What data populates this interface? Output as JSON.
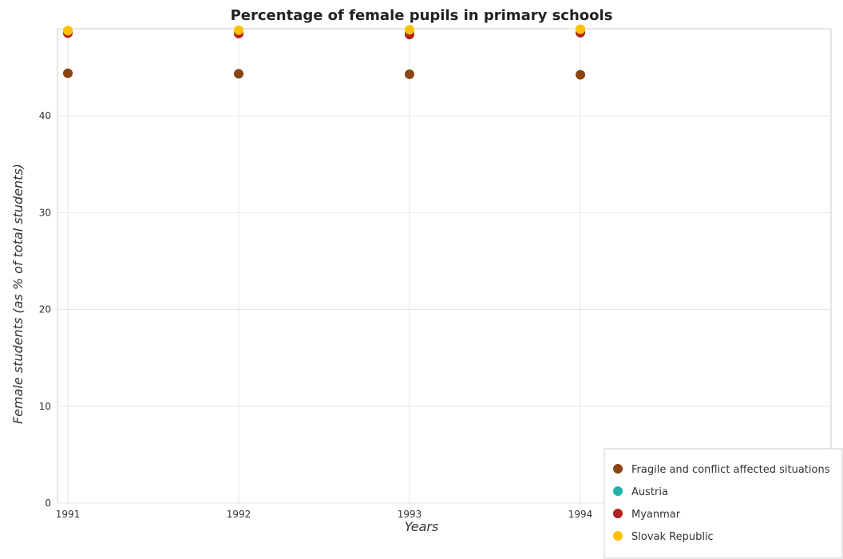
{
  "chart_data": {
    "type": "scatter",
    "title": "Percentage of female pupils in primary schools",
    "xlabel": "Years",
    "ylabel": "Female students (as % of total students)",
    "categories": [
      "1991",
      "1992",
      "1993",
      "1994"
    ],
    "ylim": [
      0,
      49
    ],
    "yticks": [
      0,
      10,
      20,
      30,
      40
    ],
    "grid": true,
    "legend_position": "bottom-right",
    "series": [
      {
        "name": "Fragile and conflict affected situations",
        "color": "#8B4513",
        "values": [
          44.4,
          44.35,
          44.3,
          44.25
        ]
      },
      {
        "name": "Austria",
        "color": "#20B2AA",
        "values": [
          48.6,
          48.6,
          48.6,
          48.6
        ]
      },
      {
        "name": "Myanmar",
        "color": "#B22222",
        "values": [
          48.55,
          48.5,
          48.4,
          48.6
        ]
      },
      {
        "name": "Slovak Republic",
        "color": "#FFC000",
        "values": [
          48.8,
          48.85,
          48.9,
          48.95
        ]
      }
    ]
  }
}
